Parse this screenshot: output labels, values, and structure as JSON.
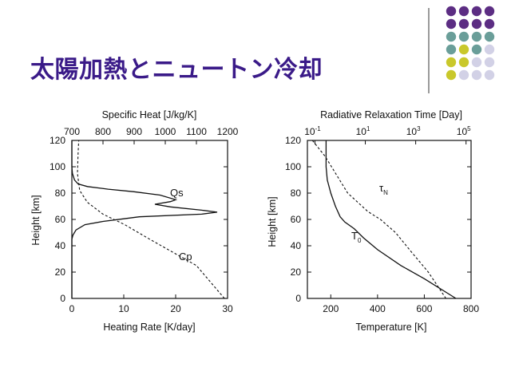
{
  "slide": {
    "title": "太陽加熱とニュートン冷却",
    "accent_colors": {
      "purple": "#5c2d83",
      "teal": "#6a9e99",
      "olive": "#c9c82b",
      "lavender": "#d2d1e6",
      "title": "#3a1a88"
    }
  },
  "chart_data": [
    {
      "type": "line",
      "title": "",
      "xlabel": "Heating Rate [K/day]",
      "ylabel": "Height [km]",
      "xlim": [
        0,
        30
      ],
      "ylim": [
        0,
        120
      ],
      "x_ticks": [
        "0",
        "10",
        "20",
        "30"
      ],
      "y_ticks": [
        "0",
        "20",
        "40",
        "60",
        "80",
        "100",
        "120"
      ],
      "top_axis": {
        "label": "Specific Heat [J/kg/K]",
        "lim": [
          700,
          1200
        ],
        "ticks": [
          "700",
          "800",
          "900",
          "1000",
          "1100",
          "1200"
        ]
      },
      "series": [
        {
          "name": "Qs",
          "axis": "bottom",
          "style": "solid",
          "points": [
            [
              0,
              0
            ],
            [
              0,
              45
            ],
            [
              0.2,
              48
            ],
            [
              0.8,
              52
            ],
            [
              2.5,
              56
            ],
            [
              6,
              58.5
            ],
            [
              10,
              60.5
            ],
            [
              13,
              62
            ],
            [
              25,
              64
            ],
            [
              28,
              65.5
            ],
            [
              25,
              67
            ],
            [
              19,
              69.5
            ],
            [
              16,
              71.5
            ],
            [
              19,
              73.5
            ],
            [
              20,
              75
            ],
            [
              17,
              78.5
            ],
            [
              12,
              81
            ],
            [
              7,
              83
            ],
            [
              3,
              85
            ],
            [
              1.2,
              87
            ],
            [
              0.5,
              90
            ],
            [
              0.1,
              95
            ],
            [
              0,
              100
            ],
            [
              0,
              120
            ]
          ]
        },
        {
          "name": "Cp",
          "axis": "top",
          "style": "dashed",
          "points": [
            [
              1190,
              0
            ],
            [
              1100,
              25
            ],
            [
              950,
              45
            ],
            [
              870,
              56
            ],
            [
              800,
              64
            ],
            [
              750,
              73
            ],
            [
              725,
              82
            ],
            [
              718,
              95
            ],
            [
              720,
              110
            ],
            [
              722,
              120
            ]
          ]
        }
      ]
    },
    {
      "type": "line",
      "title": "",
      "xlabel": "Temperature [K]",
      "ylabel": "Height [km]",
      "xlim": [
        100,
        800
      ],
      "ylim": [
        0,
        120
      ],
      "x_ticks": [
        "200",
        "400",
        "600",
        "800"
      ],
      "y_ticks": [
        "0",
        "20",
        "40",
        "60",
        "80",
        "100",
        "120"
      ],
      "top_axis": {
        "label": "Radiative Relaxation Time [Day]",
        "scale": "log",
        "lim": [
          -1.3,
          5.2
        ],
        "ticks": [
          {
            "base": "10",
            "exp": "-1",
            "value": -1
          },
          {
            "base": "10",
            "exp": "1",
            "value": 1
          },
          {
            "base": "10",
            "exp": "3",
            "value": 3
          },
          {
            "base": "10",
            "exp": "5",
            "value": 5
          }
        ]
      },
      "series": [
        {
          "name": "T0",
          "label_main": "T",
          "label_sub": "0",
          "axis": "bottom",
          "style": "solid",
          "points": [
            [
              735,
              0
            ],
            [
              600,
              15
            ],
            [
              500,
              25
            ],
            [
              400,
              37
            ],
            [
              340,
              46
            ],
            [
              300,
              53
            ],
            [
              260,
              58
            ],
            [
              240,
              62
            ],
            [
              220,
              70
            ],
            [
              200,
              80
            ],
            [
              185,
              90
            ],
            [
              180,
              100
            ],
            [
              180,
              120
            ]
          ]
        },
        {
          "name": "τN",
          "label_main": "τ",
          "label_sub": "N",
          "axis": "top",
          "style": "dashed",
          "points": [
            [
              4.2,
              0
            ],
            [
              3.5,
              20
            ],
            [
              2.8,
              36
            ],
            [
              2.2,
              50
            ],
            [
              1.6,
              60
            ],
            [
              1.1,
              66
            ],
            [
              0.3,
              80
            ],
            [
              -0.6,
              108
            ],
            [
              -1.1,
              120
            ]
          ]
        }
      ]
    }
  ]
}
